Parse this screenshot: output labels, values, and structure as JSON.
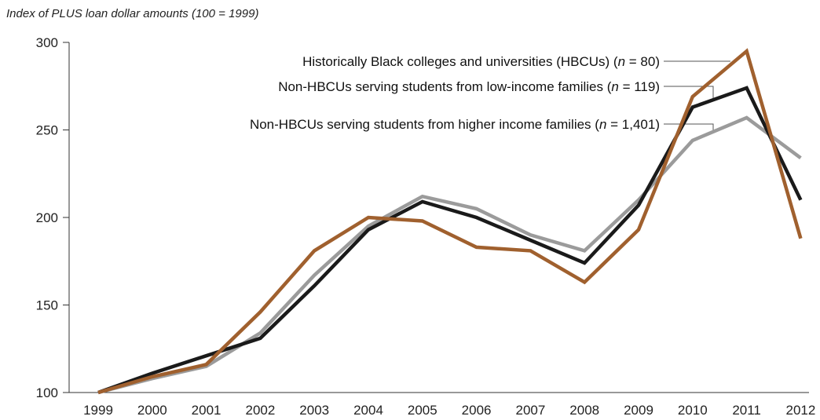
{
  "chart_data": {
    "type": "line",
    "title": "",
    "ylabel": "Index of PLUS loan dollar amounts (100 = 1999)",
    "xlabel": "",
    "x": [
      "1999",
      "2000",
      "2001",
      "2002",
      "2003",
      "2004",
      "2005",
      "2006",
      "2007",
      "2008",
      "2009",
      "2010",
      "2011",
      "2012"
    ],
    "ylim": [
      100,
      300
    ],
    "yticks": [
      100,
      150,
      200,
      250,
      300
    ],
    "grid": false,
    "series": [
      {
        "name": "Historically Black colleges and universities (HBCUs) (n = 80)",
        "legend_pre": "Historically Black colleges and universities (HBCUs) (",
        "legend_n": "n",
        "legend_post": " = 80)",
        "color": "#A0602E",
        "values": [
          100,
          109,
          116,
          146,
          181,
          200,
          198,
          183,
          181,
          163,
          193,
          269,
          295,
          188
        ]
      },
      {
        "name": "Non-HBCUs serving students from low-income families (n = 119)",
        "legend_pre": "Non-HBCUs serving students from low-income families (",
        "legend_n": "n",
        "legend_post": " = 119)",
        "color": "#1a1a1a",
        "values": [
          100,
          111,
          121,
          131,
          161,
          193,
          209,
          200,
          187,
          174,
          207,
          263,
          274,
          210
        ]
      },
      {
        "name": "Non-HBCUs serving students from higher income families (n = 1,401)",
        "legend_pre": "Non-HBCUs serving students from higher income families (",
        "legend_n": "n",
        "legend_post": " = 1,401)",
        "color": "#9b9b9b",
        "values": [
          100,
          108,
          115,
          134,
          167,
          195,
          212,
          205,
          190,
          181,
          210,
          244,
          257,
          234
        ]
      }
    ]
  }
}
